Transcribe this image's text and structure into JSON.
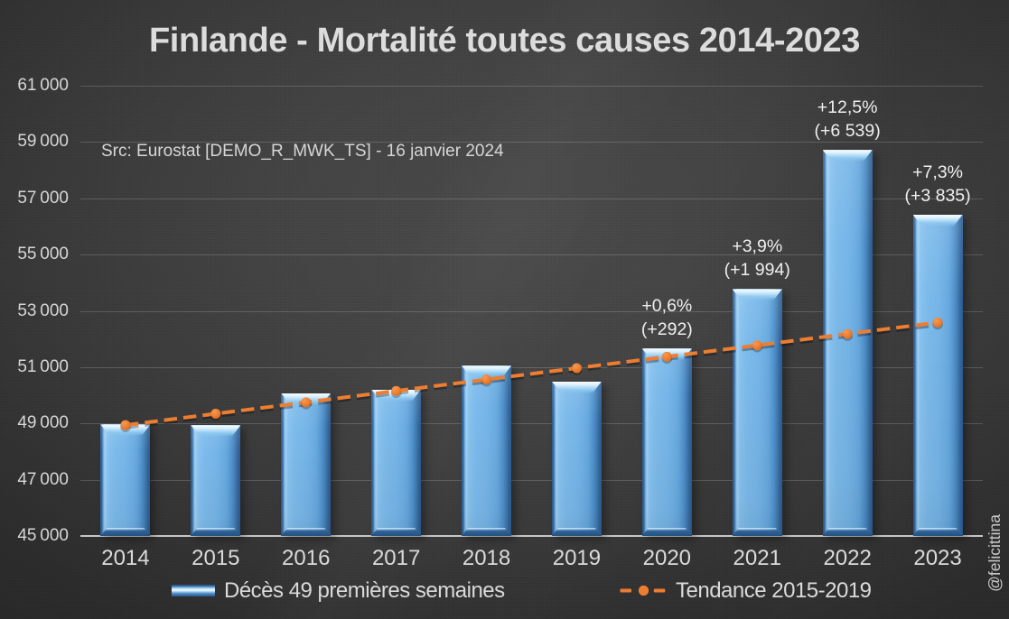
{
  "title": "Finlande - Mortalité toutes causes 2014-2023",
  "source_note": "Src: Eurostat [DEMO_R_MWK_TS] - 16 janvier 2024",
  "watermark": "@felicittina",
  "colors": {
    "background_center": "#4b4b4b",
    "background_edge": "#272727",
    "bar_fill": "#5b9bd5",
    "bar_highlight": "#a9d6f3",
    "trend_line": "#ed7d31",
    "text": "#d9d9d9",
    "annotation_text": "#efefef",
    "gridline": "rgba(255,255,255,0.17)",
    "axis_line": "#c7c7c7"
  },
  "legend": {
    "bar_label": "Décès 49 premières semaines",
    "line_label": "Tendance 2015-2019"
  },
  "chart_data": {
    "type": "bar",
    "categories": [
      "2014",
      "2015",
      "2016",
      "2017",
      "2018",
      "2019",
      "2020",
      "2021",
      "2022",
      "2023"
    ],
    "series": [
      {
        "name": "Décès 49 premières semaines",
        "type": "bar",
        "values": [
          48960,
          48935,
          50080,
          50210,
          51050,
          50490,
          51660,
          53770,
          58720,
          56420
        ]
      },
      {
        "name": "Tendance 2015-2019",
        "type": "line",
        "style": "dashed",
        "values": [
          48940,
          49345,
          49750,
          50155,
          50560,
          50965,
          51370,
          51775,
          52180,
          52585
        ]
      }
    ],
    "annotations": [
      {
        "category": "2020",
        "lines": [
          "+0,6%",
          "(+292)"
        ]
      },
      {
        "category": "2021",
        "lines": [
          "+3,9%",
          "(+1 994)"
        ]
      },
      {
        "category": "2022",
        "lines": [
          "+12,5%",
          "(+6 539)"
        ]
      },
      {
        "category": "2023",
        "lines": [
          "+7,3%",
          "(+3 835)"
        ]
      }
    ],
    "title": "Finlande - Mortalité toutes causes 2014-2023",
    "xlabel": "",
    "ylabel": "",
    "ylim": [
      45000,
      61000
    ],
    "ytick_step": 2000,
    "grid": true,
    "legend_position": "bottom"
  }
}
